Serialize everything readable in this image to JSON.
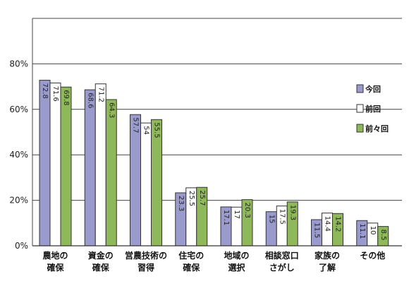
{
  "chart_data": {
    "type": "bar",
    "categories": [
      [
        "農地の",
        "確保"
      ],
      [
        "資金の",
        "確保"
      ],
      [
        "営農技術の",
        "習得"
      ],
      [
        "住宅の",
        "確保"
      ],
      [
        "地域の",
        "選択"
      ],
      [
        "相談窓口",
        "さがし"
      ],
      [
        "家族の",
        "了解"
      ],
      [
        "その他"
      ]
    ],
    "series": [
      {
        "name": "今回",
        "color": "#9a9acc",
        "values": [
          72.8,
          68.6,
          57.7,
          23.3,
          17.1,
          15,
          11.5,
          11.1
        ],
        "labels": [
          "72.8",
          "68.6",
          "57.7",
          "23.3",
          "17.1",
          "15",
          "11.5",
          "11.1"
        ]
      },
      {
        "name": "前回",
        "color": "#ffffff",
        "values": [
          71.6,
          71.2,
          54,
          25.5,
          17,
          17.5,
          14.4,
          10
        ],
        "labels": [
          "71.6",
          "71.2",
          "54",
          "25.5",
          "17",
          "17.5",
          "14.4",
          "10"
        ]
      },
      {
        "name": "前々回",
        "color": "#8fb85a",
        "values": [
          69.8,
          64.3,
          55.5,
          25.7,
          20.3,
          19.3,
          14.2,
          8.5
        ],
        "labels": [
          "69.8",
          "64.3",
          "55.5",
          "25.7",
          "20.3",
          "19.3",
          "14.2",
          "8.5"
        ]
      }
    ],
    "y_ticks": [
      0,
      20,
      40,
      60,
      80
    ],
    "y_tick_labels": [
      "0%",
      "20%",
      "40%",
      "60%",
      "80%"
    ],
    "ylim": [
      0,
      100
    ],
    "grid": true,
    "legend_position": "right"
  }
}
